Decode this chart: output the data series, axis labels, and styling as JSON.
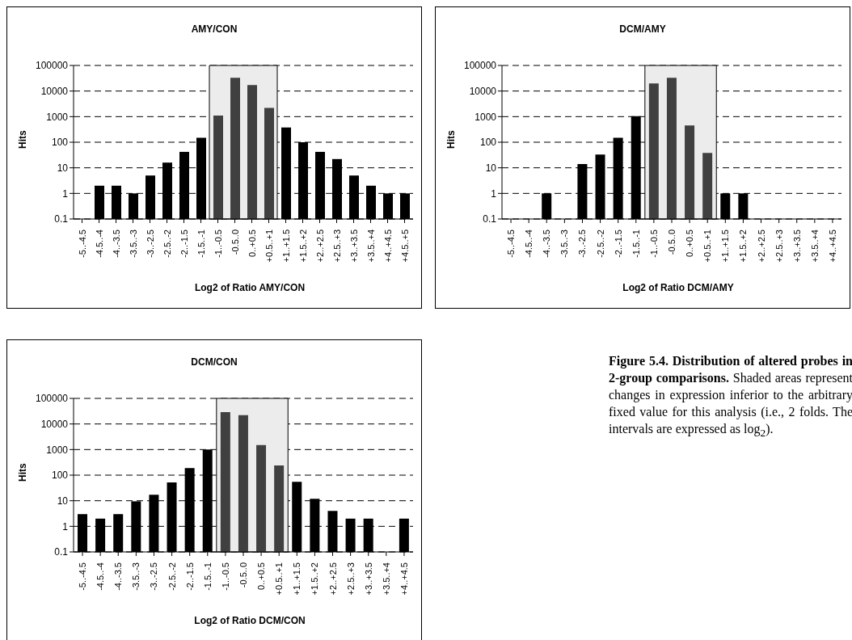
{
  "chart_data": [
    {
      "type": "bar",
      "title": "AMY/CON",
      "xlabel": "Log2 of Ratio AMY/CON",
      "ylabel": "Hits",
      "log": "y",
      "grid": "y",
      "line_style": "dashed",
      "categories": [
        "-5..-4.5",
        "-4.5..-4",
        "-4..-3.5",
        "-3.5..-3",
        "-3..-2.5",
        "-2.5..-2",
        "-2..-1.5",
        "-1.5..-1",
        "-1..-0.5",
        "-0.5..0",
        "0..+0.5",
        "+0.5..+1",
        "+1..+1.5",
        "+1.5..+2",
        "+2..+2.5",
        "+2.5..+3",
        "+3..+3.5",
        "+3.5..+4",
        "+4..+4.5",
        "+4.5..+5"
      ],
      "values": [
        null,
        2,
        2,
        1,
        5,
        16,
        42,
        150,
        1100,
        33000,
        17000,
        2200,
        380,
        100,
        42,
        22,
        5,
        2,
        1,
        1
      ],
      "colors": [
        "#000000",
        "#000000",
        "#000000",
        "#000000",
        "#000000",
        "#000000",
        "#000000",
        "#000000",
        "#404040",
        "#404040",
        "#404040",
        "#404040",
        "#000000",
        "#000000",
        "#000000",
        "#000000",
        "#000000",
        "#000000",
        "#000000",
        "#000000"
      ],
      "ylim": [
        0.1,
        100000
      ],
      "yticks": [
        0.1,
        1,
        10,
        100,
        1000,
        10000,
        100000
      ],
      "bands": [
        {
          "axis": "x",
          "from": "-1..-0.5",
          "to": "+0.5..+1",
          "color": "#ececec"
        }
      ]
    },
    {
      "type": "bar",
      "title": "DCM/AMY",
      "xlabel": "Log2 of Ratio DCM/AMY",
      "ylabel": "Hits",
      "log": "y",
      "grid": "y",
      "line_style": "dashed",
      "categories": [
        "-5..-4.5",
        "-4.5..-4",
        "-4..-3.5",
        "-3.5..-3",
        "-3..-2.5",
        "-2.5..-2",
        "-2..-1.5",
        "-1.5..-1",
        "-1..-0.5",
        "-0.5..0",
        "0..+0.5",
        "+0.5..+1",
        "+1..+1.5",
        "+1.5..+2",
        "+2..+2.5",
        "+2.5..+3",
        "+3..+3.5",
        "+3.5..+4",
        "+4..+4.5"
      ],
      "values": [
        null,
        null,
        1,
        null,
        14,
        33,
        150,
        1050,
        20000,
        33000,
        450,
        38,
        1,
        1,
        null,
        null,
        null,
        null,
        null
      ],
      "colors": [
        "#000000",
        "#000000",
        "#000000",
        "#000000",
        "#000000",
        "#000000",
        "#000000",
        "#000000",
        "#404040",
        "#404040",
        "#404040",
        "#404040",
        "#000000",
        "#000000",
        "#000000",
        "#000000",
        "#000000",
        "#000000",
        "#000000"
      ],
      "ylim": [
        0.1,
        100000
      ],
      "yticks": [
        0.1,
        1,
        10,
        100,
        1000,
        10000,
        100000
      ],
      "bands": [
        {
          "axis": "x",
          "from": "-1..-0.5",
          "to": "+0.5..+1",
          "color": "#ececec"
        }
      ]
    },
    {
      "type": "bar",
      "title": "DCM/CON",
      "xlabel": "Log2 of Ratio DCM/CON",
      "ylabel": "Hits",
      "log": "y",
      "grid": "y",
      "line_style": "dashed",
      "categories": [
        "-5..-4.5",
        "-4.5..-4",
        "-4..-3.5",
        "-3.5..-3",
        "-3..-2.5",
        "-2.5..-2",
        "-2..-1.5",
        "-1.5..-1",
        "-1..-0.5",
        "-0.5..0",
        "0..+0.5",
        "+0.5..+1",
        "+1..+1.5",
        "+1.5..+2",
        "+2..+2.5",
        "+2.5..+3",
        "+3..+3.5",
        "+3.5..+4",
        "+4..+4.5"
      ],
      "values": [
        3,
        2,
        3,
        9.5,
        17,
        52,
        190,
        1000,
        29000,
        22000,
        1500,
        240,
        55,
        12,
        4,
        2,
        2,
        null,
        2
      ],
      "colors": [
        "#000000",
        "#000000",
        "#000000",
        "#000000",
        "#000000",
        "#000000",
        "#000000",
        "#000000",
        "#404040",
        "#404040",
        "#404040",
        "#404040",
        "#000000",
        "#000000",
        "#000000",
        "#000000",
        "#000000",
        "#000000",
        "#000000"
      ],
      "ylim": [
        0.1,
        100000
      ],
      "yticks": [
        0.1,
        1,
        10,
        100,
        1000,
        10000,
        100000
      ],
      "bands": [
        {
          "axis": "x",
          "from": "-1..-0.5",
          "to": "+0.5..+1",
          "color": "#ececec"
        }
      ],
      "annotations": [
        "Figure 5.4. Distribution of altered probes in 2-group comparisons.",
        "Shaded areas represent changes in expression inferior to the arbitrary fixed value for this analysis (i.e., 2 folds. The intervals are expressed as log$_{2}$)."
      ]
    }
  ]
}
